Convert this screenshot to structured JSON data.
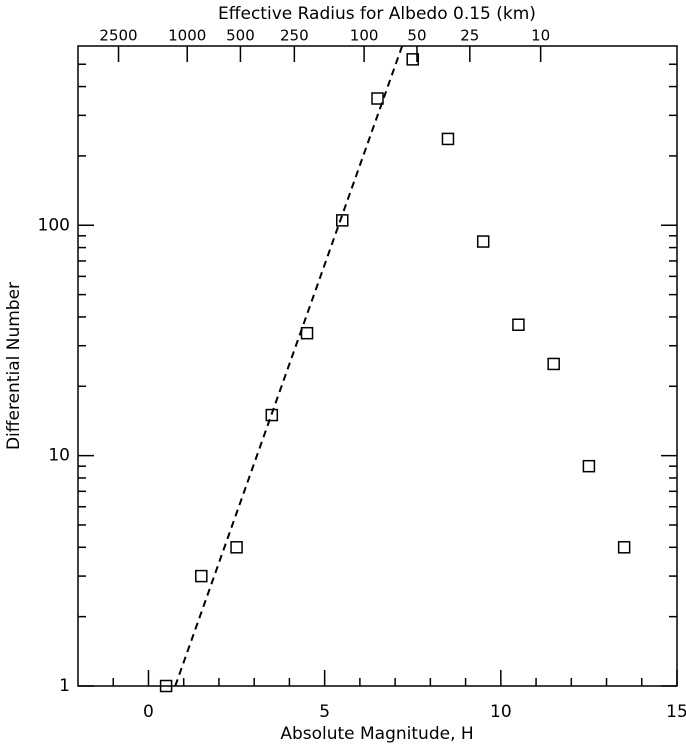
{
  "chart_data": {
    "type": "scatter",
    "title": "Effective Radius for Albedo 0.15 (km)",
    "x_label": "Absolute Magnitude, H",
    "y_label": "Differential Number",
    "y_scale": "log",
    "xlim": [
      -2,
      15
    ],
    "ylim": [
      1,
      600
    ],
    "xticks": [
      0,
      5,
      10,
      15
    ],
    "xminorticks": [
      -1,
      1,
      2,
      3,
      4,
      6,
      7,
      8,
      9,
      11,
      12,
      13,
      14
    ],
    "yticks": [
      1,
      10,
      100
    ],
    "yminorticks": [
      2,
      3,
      4,
      5,
      6,
      7,
      8,
      9,
      20,
      30,
      40,
      50,
      60,
      70,
      80,
      90,
      200,
      300,
      400,
      500
    ],
    "x2ticks": [
      {
        "value": -0.85,
        "label": "2500"
      },
      {
        "value": 1.1,
        "label": "1000"
      },
      {
        "value": 2.61,
        "label": "500"
      },
      {
        "value": 4.14,
        "label": "250"
      },
      {
        "value": 6.12,
        "label": "100"
      },
      {
        "value": 7.62,
        "label": "50"
      },
      {
        "value": 9.12,
        "label": "25"
      },
      {
        "value": 11.13,
        "label": "10"
      }
    ],
    "series": [
      {
        "type": "scatter",
        "color": "#000000",
        "x": [
          0.5,
          1.5,
          2.5,
          3.5,
          4.5,
          5.5,
          6.5,
          7.5,
          8.5,
          9.5,
          10.5,
          11.5,
          12.5,
          13.5
        ],
        "values": [
          1,
          3,
          4,
          15,
          34,
          105,
          355,
          525,
          237,
          85,
          37,
          25,
          9,
          4
        ]
      },
      {
        "type": "line",
        "color": "#000000",
        "dashed": true,
        "x": [
          0.76,
          7.2
        ],
        "values": [
          1,
          600
        ]
      }
    ]
  }
}
